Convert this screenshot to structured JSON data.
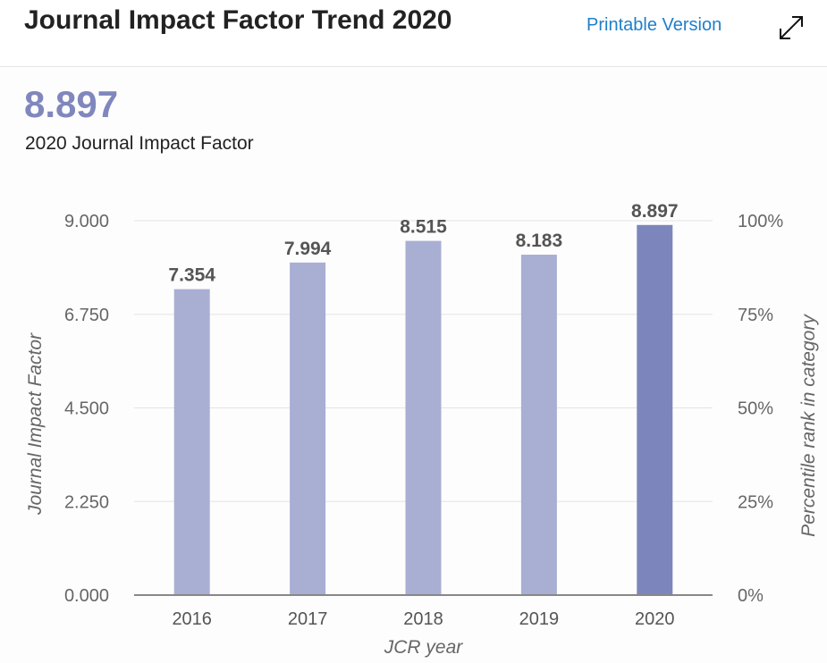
{
  "header": {
    "title": "Journal Impact Factor Trend 2020",
    "printable_label": "Printable Version",
    "expand_icon": "expand-arrows-icon"
  },
  "summary": {
    "value": "8.897",
    "label": "2020 Journal Impact Factor"
  },
  "colors": {
    "accent": "#8087bd",
    "bar": "#a9aed3",
    "bar_highlight": "#7d86bc",
    "link": "#1f7fc9"
  },
  "chart_data": {
    "type": "bar",
    "categories": [
      "2016",
      "2017",
      "2018",
      "2019",
      "2020"
    ],
    "values": [
      7.354,
      7.994,
      8.515,
      8.183,
      8.897
    ],
    "value_labels": [
      "7.354",
      "7.994",
      "8.515",
      "8.183",
      "8.897"
    ],
    "highlight_index": 4,
    "xlabel": "JCR year",
    "ylabel": "Journal Impact Factor",
    "y2label": "Percentile rank in category",
    "ylim": [
      0,
      9
    ],
    "y_ticks": [
      "0.000",
      "2.250",
      "4.500",
      "6.750",
      "9.000"
    ],
    "y2_ticks": [
      "0%",
      "25%",
      "50%",
      "75%",
      "100%"
    ],
    "grid": true,
    "legend": "none"
  }
}
